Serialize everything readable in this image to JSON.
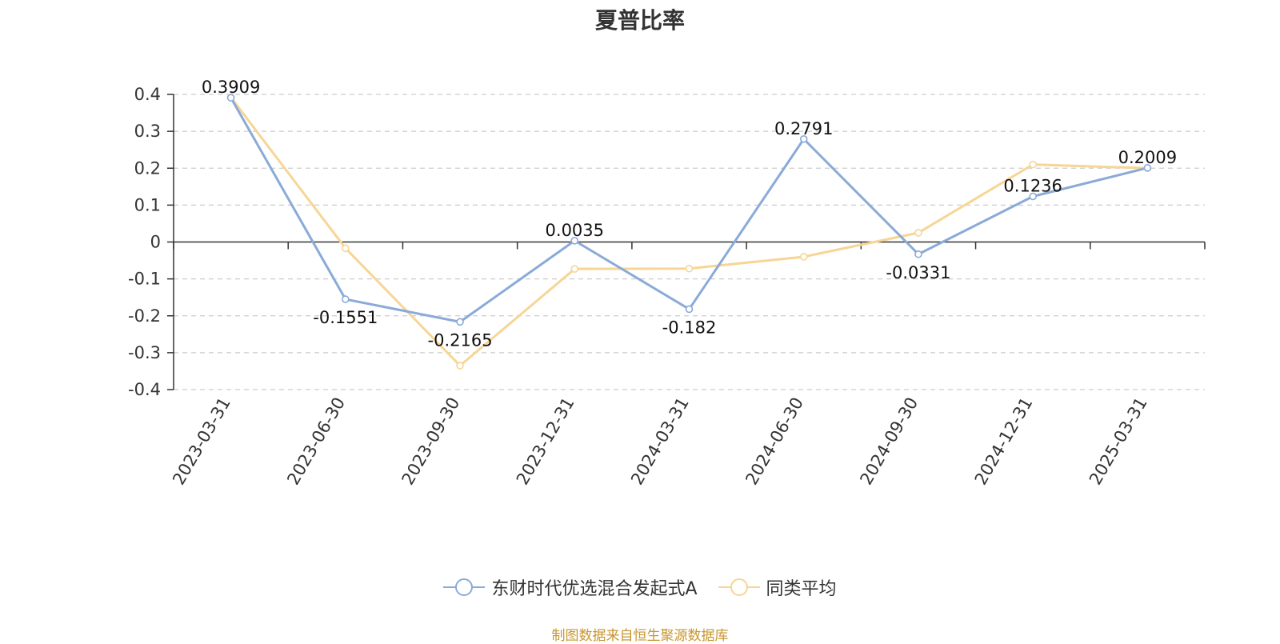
{
  "title": "夏普比率",
  "source": "制图数据来自恒生聚源数据库",
  "colors": {
    "series1": "#8aaad8",
    "series2": "#f7d595",
    "source": "#c8962e"
  },
  "chart_data": {
    "type": "line",
    "title": "夏普比率",
    "x": [
      "2023-03-31",
      "2023-06-30",
      "2023-09-30",
      "2023-12-31",
      "2024-03-31",
      "2024-06-30",
      "2024-09-30",
      "2024-12-31",
      "2025-03-31"
    ],
    "ylim": [
      -0.4,
      0.4
    ],
    "yticks": [
      0.4,
      0.3,
      0.2,
      0.1,
      0,
      -0.1,
      -0.2,
      -0.3,
      -0.4
    ],
    "ytick_labels": [
      "0.4",
      "0.3",
      "0.2",
      "0.1",
      "0",
      "-0.1",
      "-0.2",
      "-0.3",
      "-0.4"
    ],
    "grid": true,
    "legend_position": "bottom-center",
    "series": [
      {
        "name": "东财时代优选混合发起式A",
        "values": [
          0.3909,
          -0.1551,
          -0.2165,
          0.0035,
          -0.182,
          0.2791,
          -0.0331,
          0.1236,
          0.2009
        ],
        "labels": [
          "0.3909",
          "-0.1551",
          "-0.2165",
          "0.0035",
          "-0.182",
          "0.2791",
          "-0.0331",
          "0.1236",
          "0.2009"
        ]
      },
      {
        "name": "同类平均",
        "values": [
          0.392,
          -0.017,
          -0.335,
          -0.073,
          -0.072,
          -0.04,
          0.025,
          0.21,
          0.2
        ]
      }
    ]
  }
}
